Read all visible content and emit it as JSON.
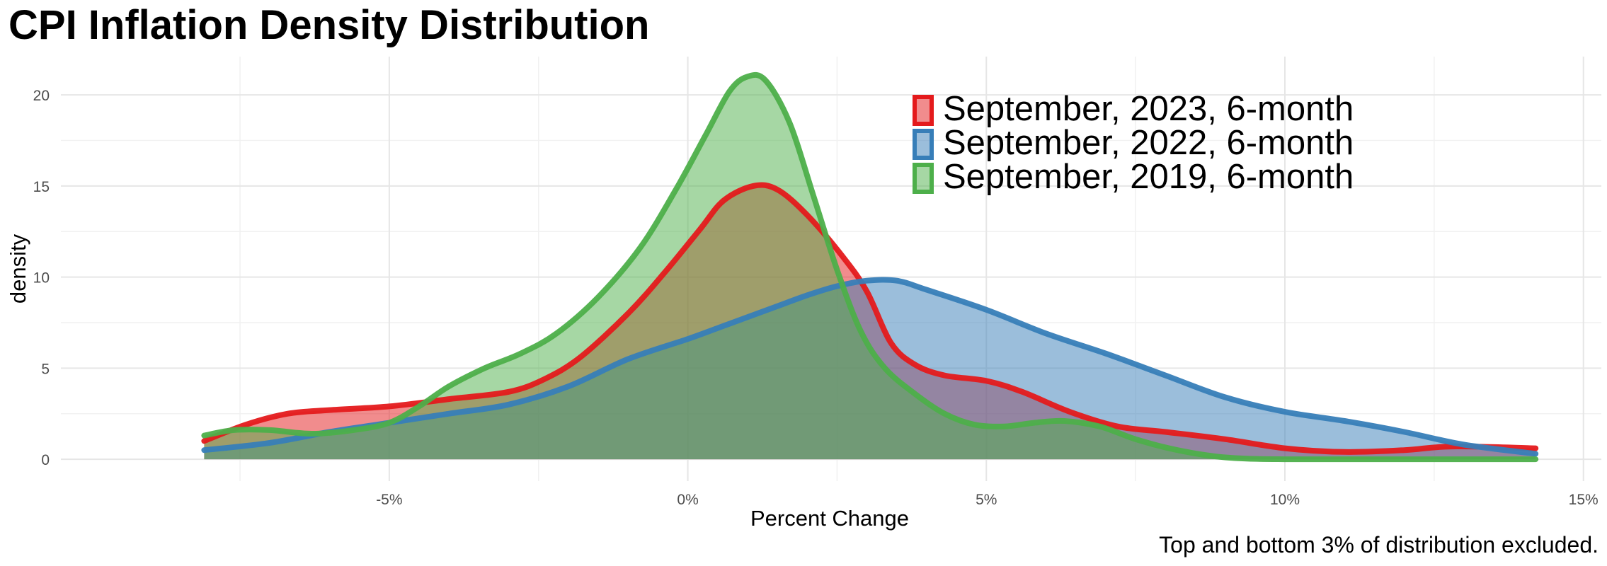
{
  "chart_data": {
    "type": "area",
    "title": "CPI Inflation Density Distribution",
    "xlabel": "Percent Change",
    "ylabel": "density",
    "caption": "Top and bottom 3% of distribution excluded.",
    "xlim": [
      -10.5,
      15.3
    ],
    "ylim": [
      -1.2,
      22.1
    ],
    "x_ticks": [
      -5,
      0,
      5,
      10,
      15
    ],
    "x_tick_labels": [
      "-5%",
      "0%",
      "5%",
      "10%",
      "15%"
    ],
    "y_ticks": [
      0,
      5,
      10,
      15,
      20
    ],
    "y_tick_labels": [
      "0",
      "5",
      "10",
      "15",
      "20"
    ],
    "grid": true,
    "legend_position": "top-center",
    "series": [
      {
        "name": "September, 2023, 6-month",
        "color": "#E41A1C",
        "points": [
          [
            -8.1,
            1.0
          ],
          [
            -7.4,
            1.9
          ],
          [
            -6.7,
            2.5
          ],
          [
            -6.0,
            2.7
          ],
          [
            -5.0,
            2.9
          ],
          [
            -4.0,
            3.3
          ],
          [
            -3.0,
            3.7
          ],
          [
            -2.4,
            4.4
          ],
          [
            -1.8,
            5.6
          ],
          [
            -1.0,
            8.0
          ],
          [
            -0.4,
            10.2
          ],
          [
            0.2,
            12.6
          ],
          [
            0.6,
            14.2
          ],
          [
            1.1,
            15.0
          ],
          [
            1.5,
            14.8
          ],
          [
            2.0,
            13.4
          ],
          [
            2.6,
            11.1
          ],
          [
            3.0,
            9.2
          ],
          [
            3.4,
            6.4
          ],
          [
            3.8,
            5.2
          ],
          [
            4.3,
            4.6
          ],
          [
            5.0,
            4.3
          ],
          [
            5.6,
            3.7
          ],
          [
            6.4,
            2.6
          ],
          [
            7.2,
            1.8
          ],
          [
            8.0,
            1.5
          ],
          [
            9.0,
            1.1
          ],
          [
            10.0,
            0.6
          ],
          [
            11.0,
            0.4
          ],
          [
            12.0,
            0.5
          ],
          [
            12.8,
            0.7
          ],
          [
            14.2,
            0.6
          ]
        ]
      },
      {
        "name": "September, 2022, 6-month",
        "color": "#377EB8",
        "points": [
          [
            -8.1,
            0.5
          ],
          [
            -7.0,
            0.9
          ],
          [
            -6.0,
            1.5
          ],
          [
            -5.0,
            2.0
          ],
          [
            -4.0,
            2.5
          ],
          [
            -3.0,
            3.0
          ],
          [
            -2.0,
            4.0
          ],
          [
            -1.0,
            5.5
          ],
          [
            0.0,
            6.6
          ],
          [
            0.5,
            7.2
          ],
          [
            1.0,
            7.8
          ],
          [
            1.5,
            8.4
          ],
          [
            2.0,
            9.0
          ],
          [
            2.5,
            9.5
          ],
          [
            3.0,
            9.8
          ],
          [
            3.5,
            9.8
          ],
          [
            4.0,
            9.3
          ],
          [
            5.0,
            8.2
          ],
          [
            6.0,
            6.9
          ],
          [
            7.0,
            5.8
          ],
          [
            8.0,
            4.6
          ],
          [
            9.0,
            3.4
          ],
          [
            10.0,
            2.6
          ],
          [
            11.0,
            2.1
          ],
          [
            12.0,
            1.5
          ],
          [
            13.0,
            0.8
          ],
          [
            14.2,
            0.3
          ]
        ]
      },
      {
        "name": "September, 2019, 6-month",
        "color": "#4DAF4A",
        "points": [
          [
            -8.1,
            1.3
          ],
          [
            -7.6,
            1.6
          ],
          [
            -7.0,
            1.6
          ],
          [
            -6.3,
            1.4
          ],
          [
            -5.6,
            1.6
          ],
          [
            -5.0,
            2.0
          ],
          [
            -4.5,
            2.9
          ],
          [
            -4.0,
            4.0
          ],
          [
            -3.4,
            5.0
          ],
          [
            -2.8,
            5.8
          ],
          [
            -2.2,
            6.9
          ],
          [
            -1.5,
            8.9
          ],
          [
            -0.8,
            11.6
          ],
          [
            -0.2,
            14.8
          ],
          [
            0.3,
            17.8
          ],
          [
            0.7,
            20.2
          ],
          [
            1.0,
            21.0
          ],
          [
            1.3,
            20.8
          ],
          [
            1.7,
            18.5
          ],
          [
            2.1,
            14.5
          ],
          [
            2.5,
            10.4
          ],
          [
            2.9,
            7.0
          ],
          [
            3.3,
            5.0
          ],
          [
            3.8,
            3.6
          ],
          [
            4.3,
            2.5
          ],
          [
            4.8,
            1.9
          ],
          [
            5.3,
            1.8
          ],
          [
            5.8,
            2.0
          ],
          [
            6.3,
            2.1
          ],
          [
            6.9,
            1.8
          ],
          [
            7.5,
            1.1
          ],
          [
            8.2,
            0.5
          ],
          [
            9.0,
            0.1
          ],
          [
            10.0,
            0.0
          ],
          [
            12.0,
            0.0
          ],
          [
            14.2,
            0.0
          ]
        ]
      }
    ]
  }
}
